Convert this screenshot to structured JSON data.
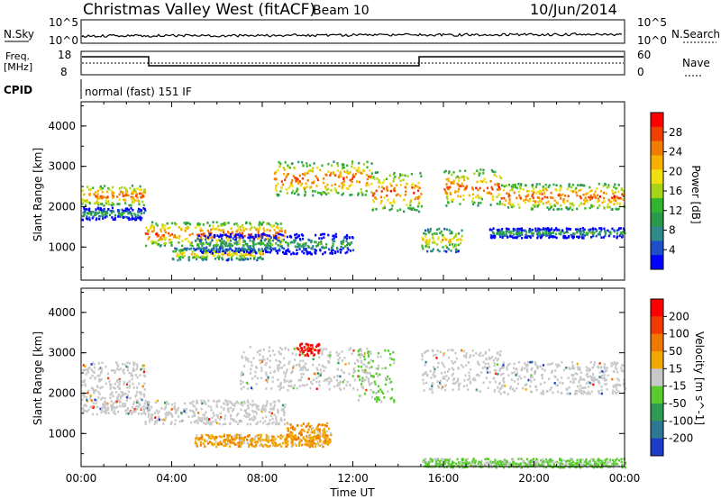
{
  "header": {
    "station": "Christmas Valley West (fitACF)",
    "beam": "Beam 10",
    "date": "10/Jun/2014"
  },
  "panels": {
    "nsky": {
      "label": "N.Sky",
      "right_label": "N.Search",
      "left_ticks": [
        "10^5",
        "10^0"
      ],
      "right_ticks": [
        "10^5",
        "10^0"
      ]
    },
    "freq": {
      "label_top": "Freq.",
      "label_unit": "[MHz]",
      "right_label": "Nave",
      "left_ticks": [
        "18",
        "8"
      ],
      "right_ticks": [
        "60",
        "0"
      ]
    },
    "cpid": {
      "label": "CPID",
      "text": "normal (fast) 151 IF"
    }
  },
  "chart_data": [
    {
      "type": "heatmap",
      "name": "power",
      "ylabel": "Slant Range [km]",
      "xlabel": "",
      "ylim": [
        180,
        4600
      ],
      "y_ticks": [
        "4000",
        "3000",
        "2000",
        "1000"
      ],
      "colorbar": {
        "label": "Power [dB]",
        "ticks": [
          "28",
          "24",
          "20",
          "16",
          "12",
          "8",
          "4"
        ],
        "colors": [
          "#0000ff",
          "#1e4ec8",
          "#2f8a8a",
          "#2a9a4a",
          "#33b42e",
          "#a8d418",
          "#f0e010",
          "#f8b000",
          "#f07c00",
          "#f04000",
          "#ff0000"
        ]
      },
      "grid": false,
      "bands": [
        {
          "x": [
            0,
            2.8
          ],
          "y": [
            2050,
            2550
          ],
          "level": "high"
        },
        {
          "x": [
            0,
            2.8
          ],
          "y": [
            1700,
            2000
          ],
          "level": "low"
        },
        {
          "x": [
            2.8,
            9
          ],
          "y": [
            1050,
            1650
          ],
          "level": "high"
        },
        {
          "x": [
            4,
            8
          ],
          "y": [
            700,
            1000
          ],
          "level": "mid"
        },
        {
          "x": [
            5,
            12
          ],
          "y": [
            850,
            1350
          ],
          "level": "low"
        },
        {
          "x": [
            8.5,
            12.8
          ],
          "y": [
            2300,
            3150
          ],
          "level": "high"
        },
        {
          "x": [
            12.8,
            15
          ],
          "y": [
            1900,
            2900
          ],
          "level": "high"
        },
        {
          "x": [
            15,
            16.8
          ],
          "y": [
            900,
            1500
          ],
          "level": "mid"
        },
        {
          "x": [
            16,
            18.5
          ],
          "y": [
            2050,
            2950
          ],
          "level": "high"
        },
        {
          "x": [
            18.5,
            24
          ],
          "y": [
            1950,
            2600
          ],
          "level": "high"
        },
        {
          "x": [
            18,
            24
          ],
          "y": [
            1250,
            1500
          ],
          "level": "low"
        }
      ]
    },
    {
      "type": "heatmap",
      "name": "velocity",
      "ylabel": "Slant Range [km]",
      "xlabel": "Time UT",
      "ylim": [
        180,
        4600
      ],
      "y_ticks": [
        "4000",
        "3000",
        "2000",
        "1000"
      ],
      "x_ticks": [
        "00:00",
        "04:00",
        "08:00",
        "12:00",
        "16:00",
        "20:00",
        "00:00"
      ],
      "colorbar": {
        "label": "Velocity [m s^-1]",
        "ticks": [
          "200",
          "100",
          "50",
          "15",
          "-15",
          "-50",
          "-100",
          "-200"
        ],
        "colors": [
          "#1e3cc8",
          "#2e7896",
          "#2e9a52",
          "#58cc2e",
          "#c8c8c8",
          "#f0a800",
          "#f07800",
          "#f03c00",
          "#ff0000"
        ]
      },
      "grid": false,
      "bands": [
        {
          "x": [
            0,
            2.8
          ],
          "y": [
            2000,
            2800
          ],
          "level": "grey"
        },
        {
          "x": [
            0,
            2.8
          ],
          "y": [
            1500,
            2000
          ],
          "level": "grey"
        },
        {
          "x": [
            2.8,
            9
          ],
          "y": [
            1250,
            1850
          ],
          "level": "grey"
        },
        {
          "x": [
            7,
            12.8
          ],
          "y": [
            2100,
            3200
          ],
          "level": "grey"
        },
        {
          "x": [
            5,
            11
          ],
          "y": [
            700,
            1000
          ],
          "level": "orange"
        },
        {
          "x": [
            9,
            11
          ],
          "y": [
            800,
            1300
          ],
          "level": "orange"
        },
        {
          "x": [
            9.5,
            10.5
          ],
          "y": [
            2950,
            3250
          ],
          "level": "red"
        },
        {
          "x": [
            12.2,
            13.8
          ],
          "y": [
            1800,
            3100
          ],
          "level": "green"
        },
        {
          "x": [
            15,
            18.5
          ],
          "y": [
            2050,
            3100
          ],
          "level": "grey"
        },
        {
          "x": [
            18.5,
            24
          ],
          "y": [
            2000,
            2800
          ],
          "level": "grey"
        },
        {
          "x": [
            15,
            24
          ],
          "y": [
            180,
            400
          ],
          "level": "green"
        }
      ]
    }
  ]
}
